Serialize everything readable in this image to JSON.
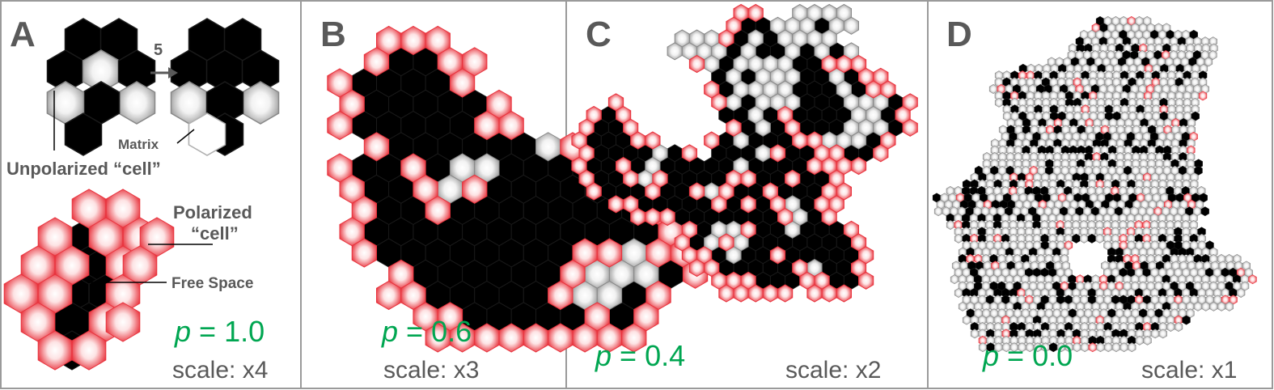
{
  "panels": [
    {
      "letter": "A",
      "p_text": "= 1.0",
      "scale_text": "scale: x4"
    },
    {
      "letter": "B",
      "p_text": "= 0.6",
      "scale_text": "scale: x3"
    },
    {
      "letter": "C",
      "p_text": "= 0.4",
      "scale_text": "scale: x2"
    },
    {
      "letter": "D",
      "p_text": "= 0.0",
      "scale_text": "scale: x1"
    }
  ],
  "p_symbol": "p",
  "panel_a": {
    "step_count": "5",
    "unpolarized_label": "Unpolarized “cell”",
    "matrix_label": "Matrix",
    "polarized_label_line1": "Polarized",
    "polarized_label_line2": "“cell”",
    "free_space_label": "Free Space"
  },
  "colors": {
    "frame": "#9a9a9a",
    "label_gray": "#595959",
    "p_green": "#00a651",
    "free_space": "#000000",
    "unpolarized_cell": "#bfbfbf",
    "polarized_cell": "#e8323c"
  }
}
